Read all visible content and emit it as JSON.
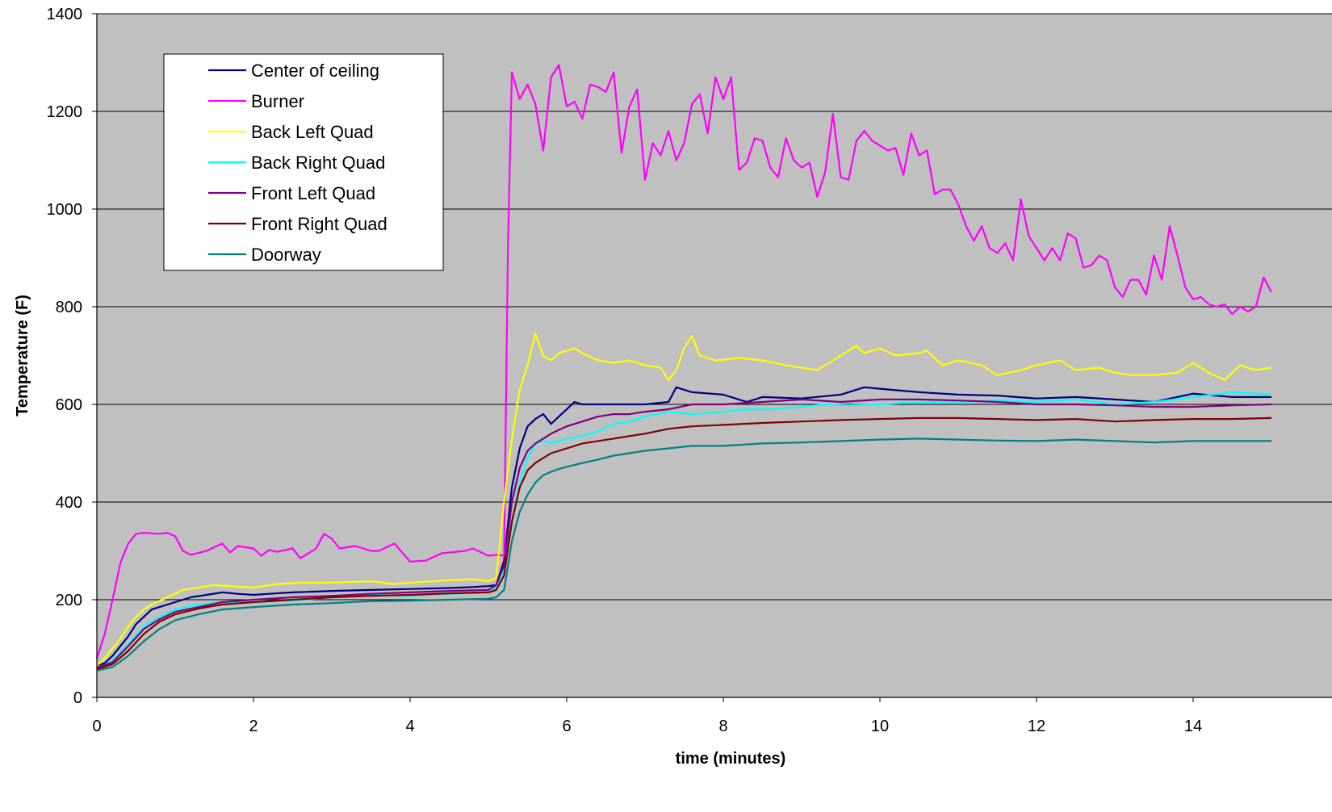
{
  "chart_data": {
    "type": "line",
    "title": "",
    "xlabel": "time (minutes)",
    "ylabel": "Temperature (F)",
    "xlim": [
      0,
      15
    ],
    "ylim": [
      0,
      1400
    ],
    "xticks": [
      0,
      2,
      4,
      6,
      8,
      10,
      12,
      14
    ],
    "yticks": [
      0,
      200,
      400,
      600,
      800,
      1000,
      1200,
      1400
    ],
    "grid": "horizontal",
    "legend_position": "top-left",
    "plot_background": "#c0c0c0",
    "series": [
      {
        "name": "Center of ceiling",
        "color": "#000080",
        "x": [
          0,
          0.1,
          0.2,
          0.3,
          0.4,
          0.5,
          0.6,
          0.7,
          0.8,
          1.0,
          1.2,
          1.4,
          1.6,
          1.8,
          2.0,
          2.2,
          2.5,
          3.0,
          3.5,
          4.0,
          4.5,
          4.8,
          5.0,
          5.1,
          5.2,
          5.3,
          5.4,
          5.5,
          5.6,
          5.7,
          5.8,
          5.9,
          6.0,
          6.1,
          6.2,
          6.5,
          7.0,
          7.3,
          7.4,
          7.6,
          8.0,
          8.3,
          8.5,
          9.0,
          9.5,
          9.8,
          10.0,
          10.5,
          11.0,
          11.5,
          12.0,
          12.5,
          13.0,
          13.5,
          14.0,
          14.5,
          15.0
        ],
        "y": [
          65,
          70,
          85,
          105,
          125,
          150,
          165,
          180,
          185,
          195,
          205,
          210,
          215,
          212,
          210,
          212,
          215,
          218,
          220,
          222,
          224,
          226,
          228,
          230,
          280,
          430,
          510,
          555,
          570,
          580,
          560,
          575,
          590,
          605,
          600,
          600,
          600,
          605,
          635,
          625,
          620,
          605,
          615,
          612,
          620,
          635,
          632,
          625,
          620,
          618,
          612,
          615,
          610,
          605,
          622,
          615,
          615
        ]
      },
      {
        "name": "Burner",
        "color": "#ff00ff",
        "x": [
          0,
          0.1,
          0.2,
          0.3,
          0.4,
          0.5,
          0.6,
          0.8,
          0.9,
          1.0,
          1.1,
          1.2,
          1.4,
          1.6,
          1.7,
          1.8,
          2.0,
          2.1,
          2.2,
          2.3,
          2.5,
          2.6,
          2.8,
          2.9,
          3.0,
          3.1,
          3.3,
          3.5,
          3.6,
          3.8,
          4.0,
          4.2,
          4.4,
          4.7,
          4.8,
          5.0,
          5.1,
          5.2,
          5.25,
          5.3,
          5.4,
          5.5,
          5.6,
          5.7,
          5.8,
          5.9,
          6.0,
          6.1,
          6.2,
          6.3,
          6.4,
          6.5,
          6.6,
          6.7,
          6.8,
          6.9,
          7.0,
          7.1,
          7.2,
          7.3,
          7.4,
          7.5,
          7.6,
          7.7,
          7.8,
          7.9,
          8.0,
          8.1,
          8.2,
          8.3,
          8.4,
          8.5,
          8.6,
          8.7,
          8.8,
          8.9,
          9.0,
          9.1,
          9.2,
          9.3,
          9.4,
          9.5,
          9.6,
          9.7,
          9.8,
          9.9,
          10.0,
          10.1,
          10.2,
          10.3,
          10.4,
          10.5,
          10.6,
          10.7,
          10.8,
          10.9,
          11.0,
          11.1,
          11.2,
          11.3,
          11.4,
          11.5,
          11.6,
          11.7,
          11.8,
          11.9,
          12.0,
          12.1,
          12.2,
          12.3,
          12.4,
          12.5,
          12.6,
          12.7,
          12.8,
          12.9,
          13.0,
          13.1,
          13.2,
          13.3,
          13.4,
          13.5,
          13.6,
          13.7,
          13.8,
          13.9,
          14.0,
          14.1,
          14.2,
          14.3,
          14.4,
          14.5,
          14.6,
          14.7,
          14.8,
          14.9,
          15.0
        ],
        "y": [
          80,
          130,
          200,
          275,
          315,
          335,
          337,
          335,
          337,
          330,
          300,
          292,
          300,
          315,
          297,
          310,
          305,
          290,
          302,
          298,
          305,
          285,
          305,
          335,
          325,
          305,
          310,
          300,
          300,
          315,
          278,
          280,
          295,
          300,
          305,
          290,
          292,
          290,
          930,
          1280,
          1225,
          1255,
          1215,
          1120,
          1270,
          1295,
          1210,
          1220,
          1185,
          1255,
          1250,
          1240,
          1280,
          1115,
          1210,
          1245,
          1060,
          1135,
          1110,
          1160,
          1100,
          1135,
          1215,
          1235,
          1155,
          1270,
          1225,
          1270,
          1080,
          1095,
          1145,
          1140,
          1085,
          1065,
          1145,
          1100,
          1085,
          1095,
          1025,
          1075,
          1195,
          1065,
          1060,
          1140,
          1160,
          1140,
          1130,
          1120,
          1125,
          1070,
          1155,
          1110,
          1120,
          1030,
          1040,
          1040,
          1010,
          965,
          935,
          965,
          920,
          910,
          930,
          895,
          1020,
          945,
          920,
          895,
          920,
          895,
          950,
          940,
          880,
          885,
          905,
          895,
          840,
          820,
          855,
          855,
          825,
          905,
          855,
          965,
          905,
          840,
          815,
          820,
          805,
          800,
          805,
          785,
          800,
          790,
          800,
          860,
          830
        ]
      },
      {
        "name": "Back Left Quad",
        "color": "#ffff00",
        "x": [
          0,
          0.1,
          0.2,
          0.3,
          0.4,
          0.5,
          0.6,
          0.7,
          0.9,
          1.1,
          1.3,
          1.5,
          1.7,
          2.0,
          2.3,
          2.6,
          3.0,
          3.5,
          3.8,
          4.0,
          4.5,
          4.8,
          5.0,
          5.1,
          5.2,
          5.3,
          5.4,
          5.5,
          5.6,
          5.7,
          5.8,
          5.9,
          6.0,
          6.1,
          6.2,
          6.4,
          6.6,
          6.8,
          7.0,
          7.2,
          7.3,
          7.4,
          7.5,
          7.6,
          7.7,
          7.9,
          8.2,
          8.5,
          8.8,
          9.2,
          9.5,
          9.7,
          9.8,
          10.0,
          10.2,
          10.5,
          10.6,
          10.8,
          11.0,
          11.3,
          11.5,
          11.8,
          12.0,
          12.3,
          12.5,
          12.8,
          13.0,
          13.2,
          13.5,
          13.8,
          14.0,
          14.2,
          14.4,
          14.6,
          14.8,
          15.0
        ],
        "y": [
          65,
          80,
          100,
          120,
          145,
          165,
          180,
          190,
          205,
          220,
          225,
          230,
          228,
          225,
          232,
          235,
          235,
          238,
          232,
          235,
          240,
          242,
          238,
          245,
          400,
          530,
          630,
          680,
          745,
          700,
          690,
          705,
          710,
          715,
          705,
          690,
          685,
          690,
          680,
          675,
          650,
          670,
          715,
          740,
          700,
          690,
          695,
          690,
          680,
          670,
          700,
          720,
          705,
          715,
          700,
          705,
          710,
          680,
          690,
          680,
          660,
          670,
          680,
          690,
          670,
          675,
          665,
          660,
          660,
          665,
          685,
          665,
          650,
          680,
          670,
          675
        ]
      },
      {
        "name": "Back Right Quad",
        "color": "#00ffff",
        "x": [
          0,
          0.2,
          0.4,
          0.6,
          0.8,
          1.0,
          1.3,
          1.6,
          2.0,
          2.5,
          3.0,
          3.5,
          4.0,
          4.5,
          5.0,
          5.1,
          5.2,
          5.3,
          5.4,
          5.5,
          5.6,
          5.7,
          5.8,
          5.9,
          6.0,
          6.2,
          6.4,
          6.6,
          6.8,
          7.0,
          7.3,
          7.6,
          8.0,
          8.3,
          8.6,
          9.0,
          9.3,
          9.6,
          10.0,
          10.5,
          11.0,
          11.5,
          12.0,
          12.5,
          13.0,
          13.5,
          14.0,
          14.5,
          15.0
        ],
        "y": [
          58,
          75,
          110,
          145,
          165,
          180,
          190,
          195,
          195,
          198,
          205,
          210,
          208,
          212,
          215,
          225,
          260,
          360,
          440,
          490,
          520,
          525,
          520,
          525,
          530,
          535,
          545,
          560,
          565,
          575,
          585,
          580,
          585,
          590,
          590,
          595,
          600,
          598,
          600,
          605,
          605,
          608,
          605,
          610,
          600,
          605,
          615,
          625,
          620
        ]
      },
      {
        "name": "Front Left Quad",
        "color": "#800080",
        "x": [
          0,
          0.2,
          0.4,
          0.6,
          0.8,
          1.0,
          1.3,
          1.6,
          2.0,
          2.5,
          3.0,
          3.5,
          4.0,
          4.5,
          5.0,
          5.1,
          5.2,
          5.3,
          5.4,
          5.5,
          5.6,
          5.7,
          5.8,
          5.9,
          6.0,
          6.2,
          6.4,
          6.6,
          6.8,
          7.0,
          7.3,
          7.6,
          8.0,
          8.5,
          9.0,
          9.5,
          10.0,
          10.5,
          11.0,
          11.5,
          12.0,
          12.5,
          13.0,
          13.5,
          14.0,
          14.5,
          15.0
        ],
        "y": [
          60,
          72,
          105,
          140,
          160,
          175,
          185,
          195,
          200,
          205,
          208,
          212,
          215,
          218,
          220,
          230,
          270,
          400,
          470,
          505,
          520,
          530,
          540,
          548,
          555,
          565,
          575,
          580,
          580,
          585,
          590,
          600,
          600,
          605,
          610,
          605,
          610,
          610,
          608,
          605,
          600,
          600,
          598,
          595,
          595,
          598,
          600
        ]
      },
      {
        "name": "Front Right Quad",
        "color": "#800000",
        "x": [
          0,
          0.2,
          0.4,
          0.6,
          0.8,
          1.0,
          1.3,
          1.6,
          2.0,
          2.5,
          3.0,
          3.5,
          4.0,
          4.5,
          5.0,
          5.1,
          5.2,
          5.3,
          5.4,
          5.5,
          5.6,
          5.7,
          5.8,
          5.9,
          6.0,
          6.2,
          6.4,
          6.6,
          6.8,
          7.0,
          7.3,
          7.6,
          8.0,
          8.5,
          9.0,
          9.5,
          10.0,
          10.5,
          11.0,
          11.5,
          12.0,
          12.5,
          13.0,
          13.5,
          14.0,
          14.5,
          15.0
        ],
        "y": [
          58,
          68,
          95,
          130,
          155,
          170,
          182,
          190,
          195,
          200,
          205,
          208,
          210,
          213,
          215,
          220,
          250,
          360,
          430,
          465,
          480,
          490,
          500,
          505,
          510,
          520,
          525,
          530,
          535,
          540,
          550,
          555,
          558,
          562,
          565,
          568,
          570,
          572,
          572,
          570,
          568,
          570,
          565,
          568,
          570,
          570,
          572
        ]
      },
      {
        "name": "Doorway",
        "color": "#008080",
        "x": [
          0,
          0.2,
          0.4,
          0.6,
          0.8,
          1.0,
          1.3,
          1.6,
          2.0,
          2.5,
          3.0,
          3.5,
          4.0,
          4.5,
          5.0,
          5.1,
          5.2,
          5.3,
          5.4,
          5.5,
          5.6,
          5.7,
          5.8,
          5.9,
          6.0,
          6.2,
          6.4,
          6.6,
          6.8,
          7.0,
          7.3,
          7.6,
          8.0,
          8.5,
          9.0,
          9.5,
          10.0,
          10.5,
          11.0,
          11.5,
          12.0,
          12.5,
          13.0,
          13.5,
          14.0,
          14.5,
          15.0
        ],
        "y": [
          55,
          62,
          85,
          115,
          140,
          158,
          170,
          180,
          185,
          190,
          193,
          197,
          198,
          200,
          202,
          205,
          220,
          320,
          380,
          415,
          440,
          455,
          462,
          468,
          472,
          480,
          487,
          495,
          500,
          505,
          510,
          515,
          515,
          520,
          522,
          525,
          528,
          530,
          528,
          526,
          525,
          528,
          525,
          522,
          525,
          525,
          525
        ]
      }
    ]
  }
}
